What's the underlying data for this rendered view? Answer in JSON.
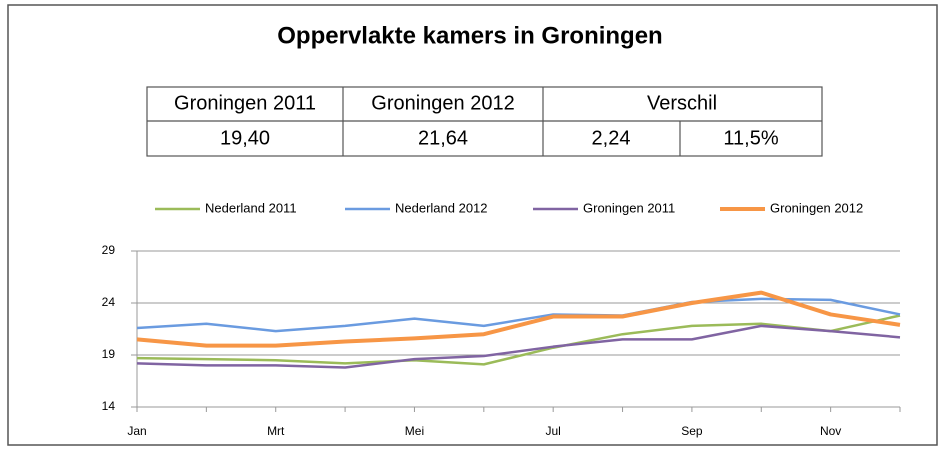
{
  "chart_data": {
    "type": "line",
    "title": "Oppervlakte kamers in Groningen",
    "table": {
      "headers": [
        "Groningen 2011",
        "Groningen 2012",
        "Verschil"
      ],
      "rows": [
        [
          "19,40",
          "21,64",
          "2,24",
          "11,5%"
        ]
      ]
    },
    "categories": [
      "Jan",
      null,
      "Mrt",
      null,
      "Mei",
      null,
      "Jul",
      null,
      "Sep",
      null,
      "Nov",
      null
    ],
    "series": [
      {
        "name": "Nederland 2011",
        "color": "#9bbb59",
        "values": [
          18.7,
          18.6,
          18.5,
          18.2,
          18.5,
          18.1,
          19.7,
          21.0,
          21.8,
          22.0,
          21.3,
          22.8
        ]
      },
      {
        "name": "Nederland 2012",
        "color": "#6a9be0",
        "values": [
          21.6,
          22.0,
          21.3,
          21.8,
          22.5,
          21.8,
          22.9,
          22.8,
          24.1,
          24.4,
          24.3,
          22.9
        ]
      },
      {
        "name": "Groningen 2011",
        "color": "#8064a2",
        "values": [
          18.2,
          18.0,
          18.0,
          17.8,
          18.6,
          18.9,
          19.8,
          20.5,
          20.5,
          21.8,
          21.3,
          20.7
        ]
      },
      {
        "name": "Groningen 2012",
        "color": "#f79646",
        "values": [
          20.5,
          19.9,
          19.9,
          20.3,
          20.6,
          21.0,
          22.7,
          22.7,
          24.0,
          25.0,
          22.9,
          21.9
        ]
      }
    ],
    "ylim": [
      14,
      29
    ],
    "yticks": [
      14,
      19,
      24,
      29
    ],
    "grid": true,
    "legend": "top"
  }
}
